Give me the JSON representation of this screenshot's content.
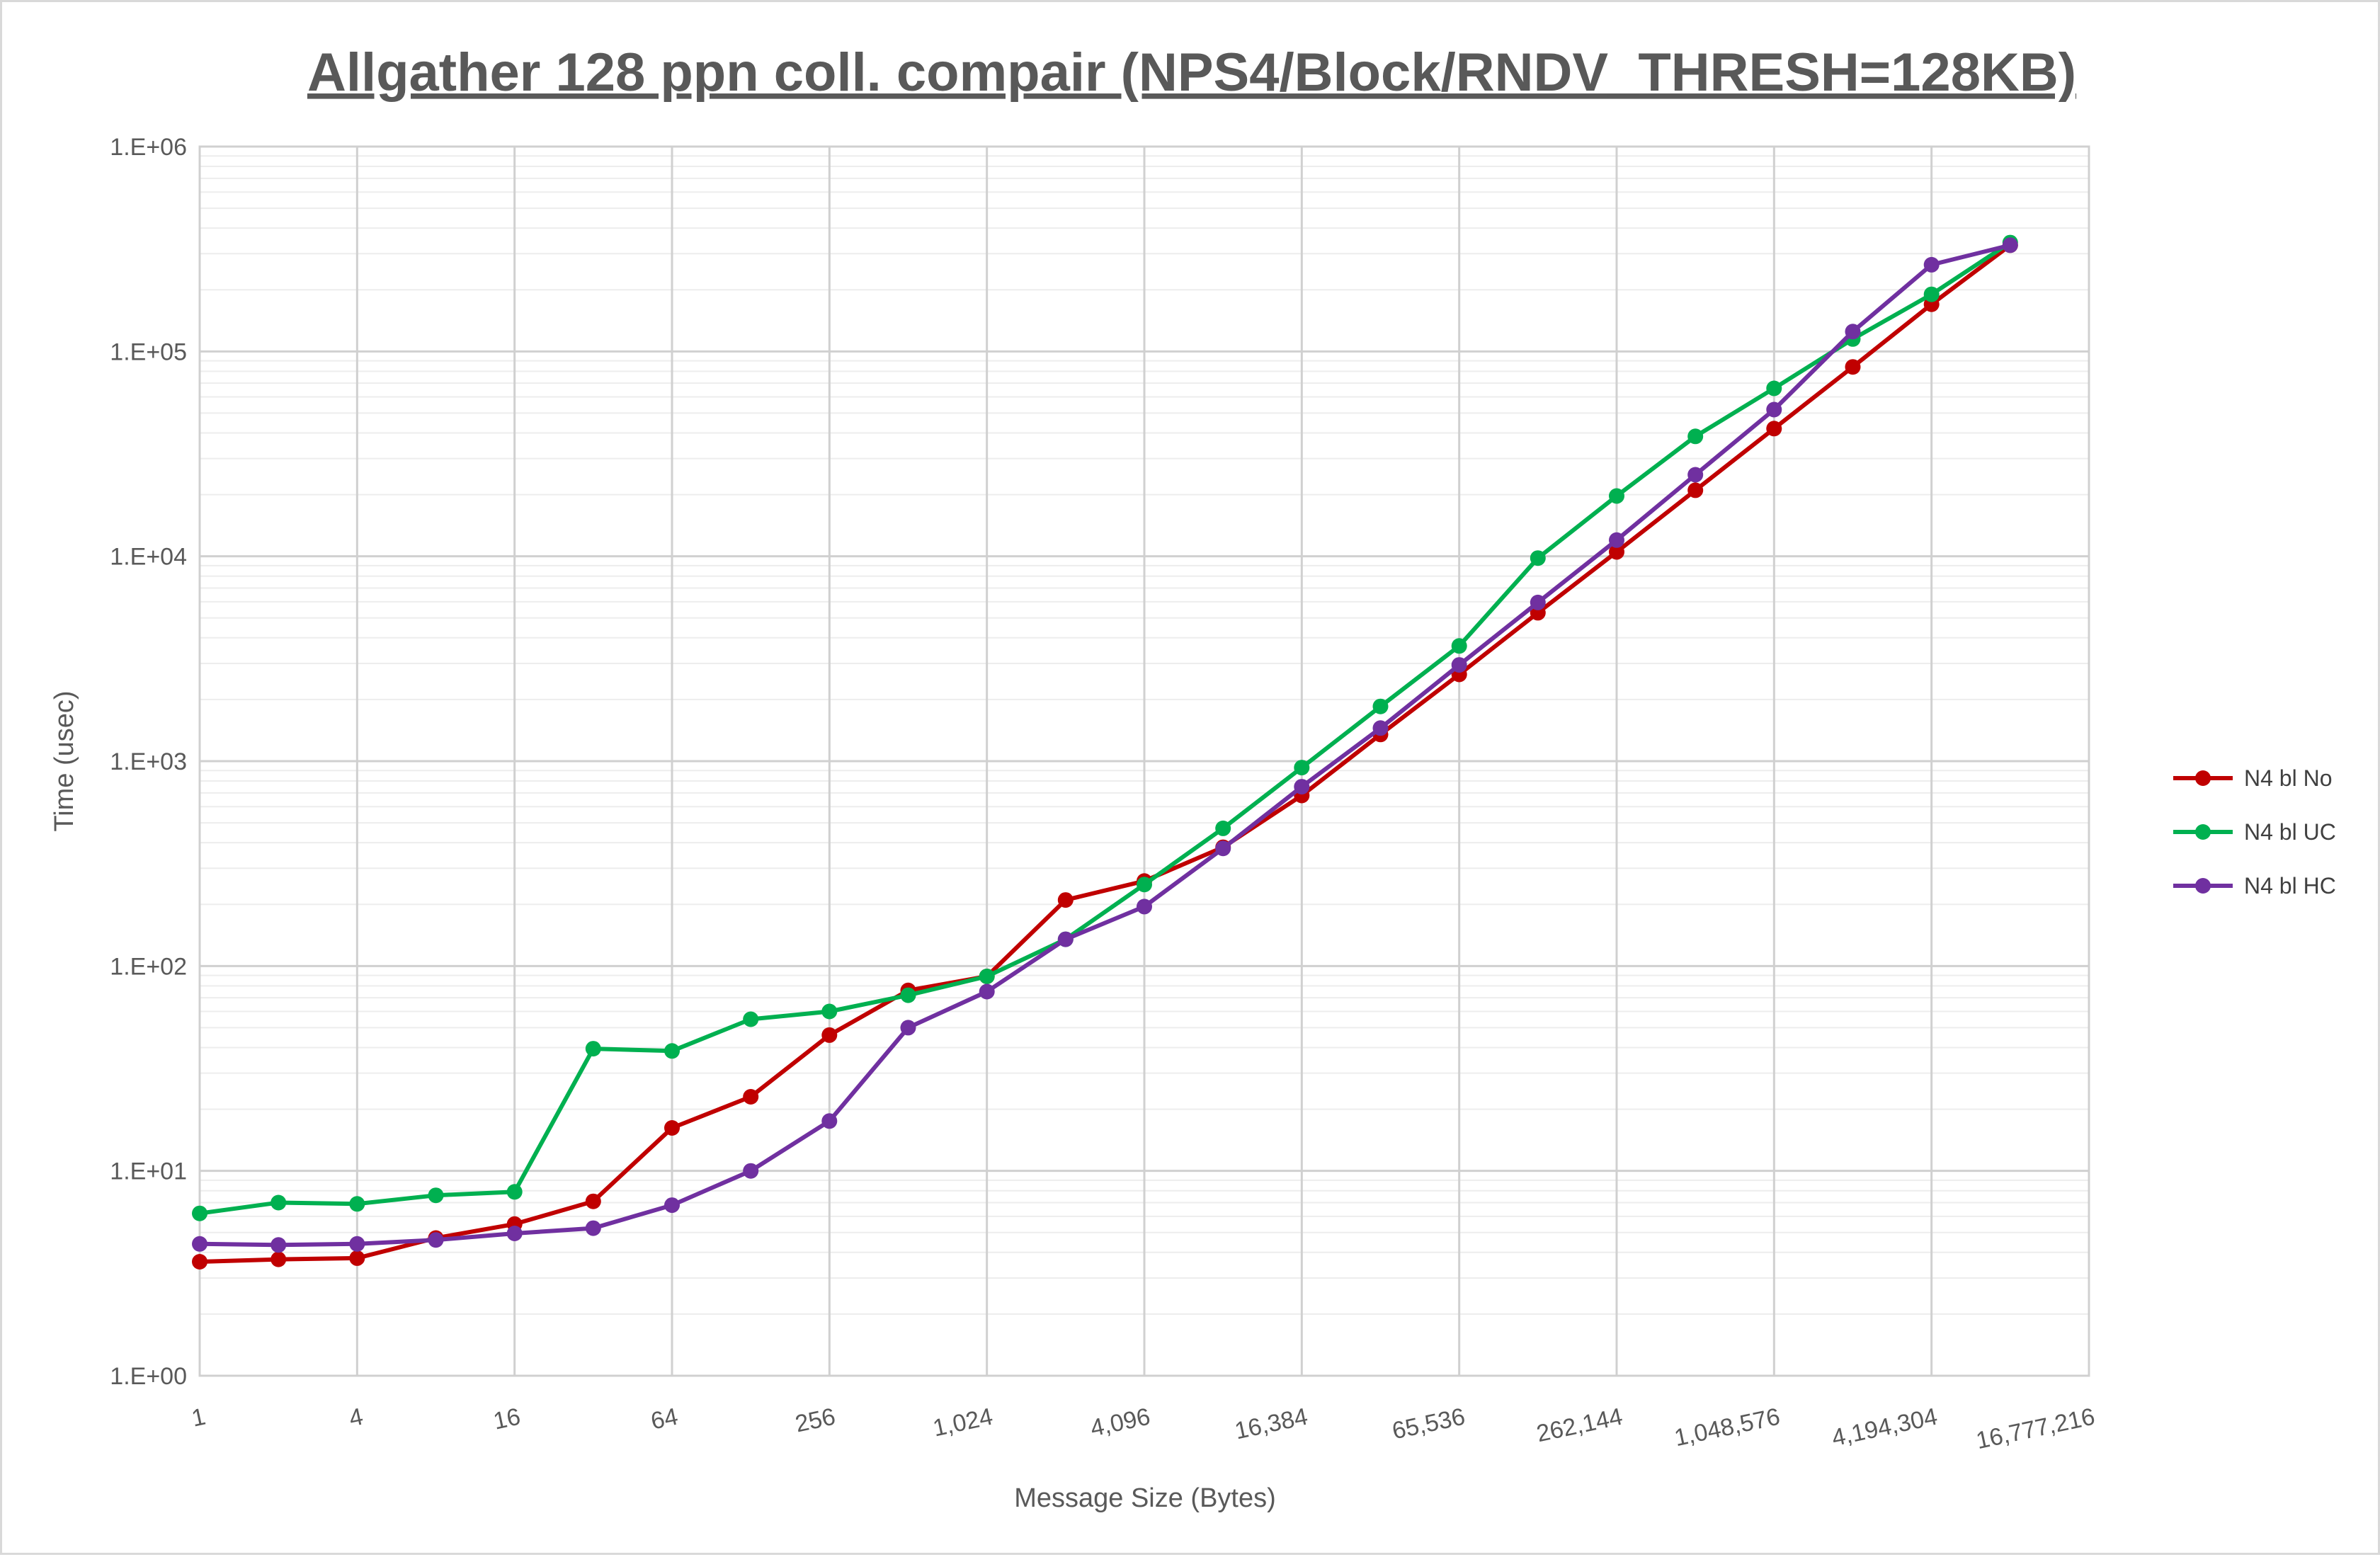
{
  "chart_data": {
    "type": "line",
    "title": "Allgather 128 ppn coll. compair (NPS4/Block/RNDV_THRESH=128KB)",
    "xlabel": "Message Size (Bytes)",
    "ylabel": "Time (usec)",
    "x_scale": "log2",
    "y_scale": "log10",
    "ylim": [
      1,
      1000000
    ],
    "y_ticks": [
      "1.E+00",
      "1.E+01",
      "1.E+02",
      "1.E+03",
      "1.E+04",
      "1.E+05",
      "1.E+06"
    ],
    "x_ticks": [
      "1",
      "4",
      "16",
      "64",
      "256",
      "1,024",
      "4,096",
      "16,384",
      "65,536",
      "262,144",
      "1,048,576",
      "4,194,304",
      "16,777,216"
    ],
    "x": [
      1,
      2,
      4,
      8,
      16,
      32,
      64,
      128,
      256,
      512,
      1024,
      2048,
      4096,
      8192,
      16384,
      32768,
      65536,
      131072,
      262144,
      524288,
      1048576,
      2097152,
      4194304,
      8388608
    ],
    "legend_position": "right",
    "grid": true,
    "series": [
      {
        "name": "N4 bl No",
        "color": "#c00000",
        "values": [
          3.6,
          3.7,
          3.75,
          4.7,
          5.5,
          7.1,
          16.2,
          23,
          46,
          76,
          89,
          210,
          260,
          380,
          680,
          1350,
          2650,
          5300,
          10500,
          21000,
          42000,
          84000,
          170000,
          330000
        ]
      },
      {
        "name": "N4 bl UC",
        "color": "#00b050",
        "values": [
          6.2,
          7.0,
          6.9,
          7.6,
          7.9,
          39.5,
          38.5,
          55,
          60,
          72,
          89,
          135,
          250,
          470,
          930,
          1850,
          3650,
          9800,
          19700,
          38500,
          66000,
          115000,
          190000,
          340000
        ]
      },
      {
        "name": "N4 bl HC",
        "color": "#7030a0",
        "values": [
          4.4,
          4.35,
          4.4,
          4.6,
          4.95,
          5.25,
          6.8,
          10,
          17.5,
          50,
          75,
          135,
          195,
          375,
          750,
          1450,
          2950,
          5950,
          12000,
          25000,
          52000,
          125000,
          265000,
          330000
        ]
      }
    ]
  }
}
